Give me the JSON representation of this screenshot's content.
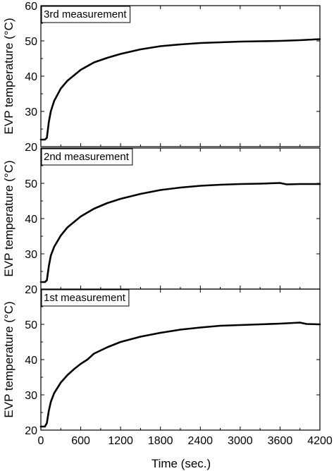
{
  "chart_data": {
    "type": "line",
    "xlabel": "Time (sec.)",
    "xlim": [
      0,
      4200
    ],
    "xticks": [
      "0",
      "600",
      "1200",
      "1800",
      "2400",
      "3000",
      "3600",
      "4200"
    ],
    "panels": [
      {
        "label": "3rd measurement",
        "ylabel": "EVP temperature (°C)",
        "ylim": [
          20,
          60
        ],
        "yticks": [
          "20",
          "30",
          "40",
          "50",
          "60"
        ],
        "x": [
          0,
          60,
          90,
          120,
          150,
          200,
          300,
          400,
          600,
          800,
          1000,
          1200,
          1500,
          1800,
          2100,
          2400,
          2700,
          3000,
          3300,
          3600,
          3900,
          4200
        ],
        "y": [
          22,
          22,
          22.5,
          27,
          30,
          33,
          36.5,
          38.7,
          41.8,
          43.9,
          45.2,
          46.3,
          47.6,
          48.5,
          49.0,
          49.4,
          49.6,
          49.8,
          49.9,
          50.0,
          50.2,
          50.5
        ]
      },
      {
        "label": "2nd measurement",
        "ylabel": "EVP temperature (°C)",
        "ylim": [
          20,
          60
        ],
        "yticks": [
          "20",
          "30",
          "40",
          "50",
          ""
        ],
        "x": [
          0,
          60,
          90,
          120,
          150,
          200,
          300,
          400,
          600,
          800,
          1000,
          1200,
          1500,
          1800,
          2100,
          2400,
          2700,
          3000,
          3300,
          3600,
          3700,
          3900,
          4200
        ],
        "y": [
          22,
          22,
          22.5,
          26.5,
          29.5,
          32,
          35.2,
          37.5,
          40.6,
          42.8,
          44.4,
          45.6,
          47.0,
          48.1,
          48.8,
          49.3,
          49.6,
          49.8,
          49.9,
          50.1,
          49.7,
          49.8,
          49.8
        ]
      },
      {
        "label": "1st measurement",
        "ylabel": "EVP temperature (°C)",
        "ylim": [
          20,
          60
        ],
        "yticks": [
          "20",
          "30",
          "40",
          "50",
          ""
        ],
        "x": [
          0,
          60,
          90,
          120,
          150,
          200,
          300,
          400,
          500,
          600,
          700,
          800,
          1000,
          1200,
          1500,
          1800,
          2100,
          2400,
          2700,
          3000,
          3300,
          3600,
          3900,
          4000,
          4200
        ],
        "y": [
          21,
          21,
          22,
          25.5,
          28,
          30.5,
          33.5,
          35.6,
          37.3,
          38.8,
          40,
          41.7,
          43.5,
          45.0,
          46.5,
          47.6,
          48.5,
          49.1,
          49.6,
          49.8,
          50.0,
          50.2,
          50.5,
          50.1,
          50.0
        ]
      }
    ]
  }
}
